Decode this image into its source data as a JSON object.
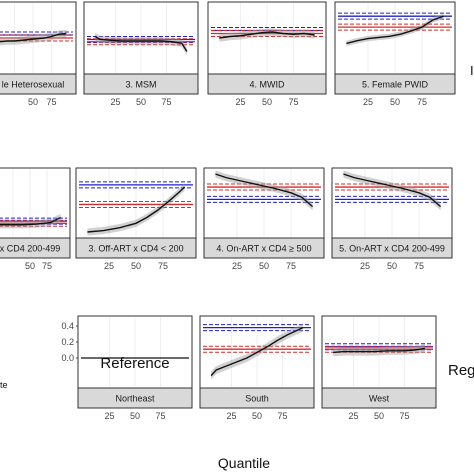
{
  "figure": {
    "x_axis_title": "Quantile",
    "annotation_reference": "Reference",
    "row_label_fragment_right_top": "I",
    "row_label_fragment_right_bottom": "Reg",
    "row_label_fragment_left_bottom": "te"
  },
  "colors": {
    "black": "#111111",
    "blue": "#2020c8",
    "red": "#d42a2a",
    "ribbon": "#9a9a9a"
  },
  "chart_data": [
    {
      "type": "line",
      "row": 1,
      "title": "Male Heterosexual (truncated: 'le Heterosexual')",
      "strip_label": "le Heterosexual",
      "xticks": [
        "50",
        "75"
      ],
      "xlim": [
        0,
        100
      ],
      "ylim": [
        -0.3,
        0.5
      ],
      "series": [
        {
          "name": "quantile estimate",
          "x": [
            5,
            15,
            25,
            35,
            45,
            55,
            65,
            75,
            85,
            95
          ],
          "y": [
            0.05,
            0.06,
            0.06,
            0.07,
            0.08,
            0.09,
            0.1,
            0.12,
            0.15,
            0.16
          ]
        },
        {
          "name": "blue",
          "hline": 0.14
        },
        {
          "name": "red",
          "hline": 0.1
        }
      ]
    },
    {
      "type": "line",
      "row": 1,
      "strip_label": "3. MSM",
      "xticks": [
        "25",
        "50",
        "75"
      ],
      "xlim": [
        0,
        100
      ],
      "ylim": [
        -0.3,
        0.5
      ],
      "series": [
        {
          "name": "quantile estimate",
          "x": [
            5,
            10,
            20,
            30,
            40,
            50,
            60,
            70,
            80,
            90,
            95
          ],
          "y": [
            0.12,
            0.08,
            0.07,
            0.06,
            0.06,
            0.06,
            0.06,
            0.06,
            0.05,
            0.03,
            -0.08
          ]
        },
        {
          "name": "blue",
          "hline": 0.08
        },
        {
          "name": "red",
          "hline": 0.05
        }
      ]
    },
    {
      "type": "line",
      "row": 1,
      "strip_label": "4. MWID",
      "xticks": [
        "25",
        "50",
        "75"
      ],
      "xlim": [
        0,
        100
      ],
      "ylim": [
        -0.3,
        0.5
      ],
      "series": [
        {
          "name": "quantile estimate",
          "x": [
            5,
            15,
            25,
            35,
            45,
            55,
            65,
            75,
            85,
            95
          ],
          "y": [
            0.1,
            0.12,
            0.13,
            0.15,
            0.17,
            0.18,
            0.16,
            0.15,
            0.16,
            0.14
          ]
        },
        {
          "name": "blue",
          "hline": 0.2
        },
        {
          "name": "red",
          "hline": 0.16
        }
      ]
    },
    {
      "type": "line",
      "row": 1,
      "strip_label": "5. Female PWID",
      "xticks": [
        "25",
        "50",
        "75"
      ],
      "xlim": [
        0,
        100
      ],
      "ylim": [
        -0.3,
        0.8
      ],
      "series": [
        {
          "name": "quantile estimate",
          "x": [
            5,
            15,
            25,
            35,
            45,
            55,
            65,
            75,
            85,
            95
          ],
          "y": [
            0.15,
            0.2,
            0.24,
            0.26,
            0.28,
            0.32,
            0.38,
            0.45,
            0.58,
            0.65
          ]
        },
        {
          "name": "blue",
          "hline": 0.65
        },
        {
          "name": "red",
          "hline": 0.45
        }
      ]
    },
    {
      "type": "line",
      "row": 2,
      "strip_label": "x CD4 200-499",
      "xticks": [
        "50",
        "75"
      ],
      "xlim": [
        0,
        100
      ],
      "ylim": [
        -0.3,
        0.5
      ],
      "series": [
        {
          "name": "quantile estimate",
          "x": [
            5,
            20,
            40,
            60,
            80,
            95
          ],
          "y": [
            -0.2,
            -0.2,
            -0.2,
            -0.19,
            -0.17,
            -0.1
          ]
        },
        {
          "name": "blue",
          "hline": -0.15
        },
        {
          "name": "red",
          "hline": -0.18
        }
      ]
    },
    {
      "type": "line",
      "row": 2,
      "strip_label": "3. Off-ART x CD4 < 200",
      "xticks": [
        "25",
        "50",
        "75"
      ],
      "xlim": [
        0,
        100
      ],
      "ylim": [
        -0.3,
        0.5
      ],
      "series": [
        {
          "name": "quantile estimate",
          "x": [
            5,
            20,
            35,
            50,
            60,
            70,
            80,
            90,
            95
          ],
          "y": [
            -0.3,
            -0.28,
            -0.24,
            -0.18,
            -0.1,
            0.0,
            0.12,
            0.25,
            0.32
          ]
        },
        {
          "name": "blue",
          "hline": 0.35
        },
        {
          "name": "red",
          "hline": 0.08
        }
      ]
    },
    {
      "type": "line",
      "row": 2,
      "strip_label": "4. On-ART x CD4 ≥ 500",
      "xticks": [
        "25",
        "50",
        "75"
      ],
      "xlim": [
        0,
        100
      ],
      "ylim": [
        -0.3,
        0.5
      ],
      "series": [
        {
          "name": "quantile estimate",
          "x": [
            5,
            15,
            30,
            45,
            60,
            75,
            85,
            95
          ],
          "y": [
            0.5,
            0.45,
            0.4,
            0.35,
            0.3,
            0.24,
            0.18,
            0.05
          ]
        },
        {
          "name": "blue",
          "hline": 0.15
        },
        {
          "name": "red",
          "hline": 0.32
        }
      ]
    },
    {
      "type": "line",
      "row": 2,
      "strip_label": "5. On-ART x CD4 200-499",
      "xticks": [
        "25",
        "50",
        "75"
      ],
      "xlim": [
        0,
        100
      ],
      "ylim": [
        -0.3,
        0.5
      ],
      "series": [
        {
          "name": "quantile estimate",
          "x": [
            5,
            15,
            30,
            45,
            60,
            75,
            85,
            95
          ],
          "y": [
            0.5,
            0.45,
            0.4,
            0.35,
            0.3,
            0.24,
            0.18,
            0.05
          ]
        },
        {
          "name": "blue",
          "hline": 0.15
        },
        {
          "name": "red",
          "hline": 0.32
        }
      ]
    },
    {
      "type": "line",
      "row": 3,
      "strip_label": "Northeast",
      "title": "",
      "ylim": [
        -0.3,
        0.45
      ],
      "xticks": [
        "25",
        "50",
        "75"
      ],
      "yticks": [
        "0.4",
        "0.2",
        "0.0"
      ],
      "xlim": [
        0,
        100
      ],
      "series": [
        {
          "name": "quantile estimate",
          "hline": 0.0
        }
      ]
    },
    {
      "type": "line",
      "row": 3,
      "strip_label": "South",
      "ylim": [
        -0.3,
        0.45
      ],
      "xticks": [
        "25",
        "50",
        "75"
      ],
      "xlim": [
        0,
        100
      ],
      "series": [
        {
          "name": "quantile estimate",
          "x": [
            5,
            10,
            20,
            30,
            40,
            50,
            60,
            70,
            80,
            90,
            95
          ],
          "y": [
            -0.22,
            -0.15,
            -0.1,
            -0.05,
            0.0,
            0.07,
            0.14,
            0.22,
            0.29,
            0.35,
            0.38
          ]
        },
        {
          "name": "blue",
          "hline": 0.38
        },
        {
          "name": "red",
          "hline": 0.11
        }
      ]
    },
    {
      "type": "line",
      "row": 3,
      "strip_label": "West",
      "ylim": [
        -0.3,
        0.45
      ],
      "xticks": [
        "25",
        "50",
        "75"
      ],
      "xlim": [
        0,
        100
      ],
      "series": [
        {
          "name": "quantile estimate",
          "x": [
            5,
            15,
            30,
            45,
            60,
            75,
            85,
            95
          ],
          "y": [
            0.07,
            0.08,
            0.08,
            0.08,
            0.09,
            0.09,
            0.1,
            0.12
          ]
        },
        {
          "name": "blue",
          "hline": 0.14
        },
        {
          "name": "red",
          "hline": 0.11
        }
      ]
    }
  ]
}
